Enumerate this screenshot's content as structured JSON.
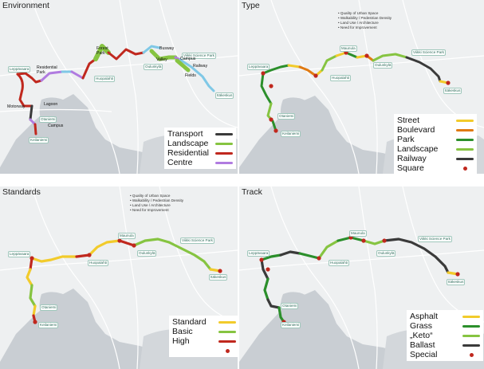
{
  "colors": {
    "red": "#c0281e",
    "yellow": "#f2cb2b",
    "orange": "#e07a12",
    "green": "#2b8f2b",
    "lightgreen": "#86c441",
    "purple": "#b07be0",
    "dark": "#3a3a3a",
    "lightblue": "#7fc8e6",
    "water": "#c9ced3",
    "road": "#ffffff"
  },
  "criteria": [
    "Quality of Urban Space",
    "Walkability / Pedestrian Density",
    "Land Use / Architecture",
    "Need for Improvement"
  ],
  "places": [
    "Leppävaara",
    "Huopalahti",
    "Oulunkylä",
    "Viikki Science Park",
    "Otaniemi",
    "Keilaniemi",
    "Itäkeskus",
    "Maunula"
  ],
  "panels": {
    "environment": {
      "title": "Environment",
      "legend": [
        {
          "label": "Transport",
          "color": "#3a3a3a"
        },
        {
          "label": "Landscape",
          "color": "#86c441"
        },
        {
          "label": "Residential",
          "color": "#c0281e"
        },
        {
          "label": "Centre",
          "color": "#b07be0"
        }
      ],
      "zones": [
        "Forest Park",
        "Busway",
        "Valley",
        "Campus",
        "Residential Park",
        "Railway",
        "Motorway",
        "Lagoon",
        "Campus",
        "Fields"
      ]
    },
    "type": {
      "title": "Type",
      "legend": [
        {
          "label": "Street",
          "color": "#f2cb2b",
          "kind": "line"
        },
        {
          "label": "Boulevard",
          "color": "#e07a12",
          "kind": "line"
        },
        {
          "label": "Park",
          "color": "#2b8f2b",
          "kind": "line"
        },
        {
          "label": "Landscape",
          "color": "#86c441",
          "kind": "line"
        },
        {
          "label": "Railway",
          "color": "#3a3a3a",
          "kind": "line"
        },
        {
          "label": "Square",
          "color": "#c0281e",
          "kind": "dot"
        }
      ]
    },
    "standards": {
      "title": "Standards",
      "legend": [
        {
          "label": "Standard",
          "color": "#f2cb2b",
          "kind": "line"
        },
        {
          "label": "Basic",
          "color": "#86c441",
          "kind": "line"
        },
        {
          "label": "High",
          "color": "#c0281e",
          "kind": "line"
        },
        {
          "label": "",
          "color": "#c0281e",
          "kind": "dot"
        }
      ]
    },
    "track": {
      "title": "Track",
      "legend": [
        {
          "label": "Asphalt",
          "color": "#f2cb2b",
          "kind": "line"
        },
        {
          "label": "Grass",
          "color": "#2b8f2b",
          "kind": "line"
        },
        {
          "label": "„Keto“",
          "color": "#86c441",
          "kind": "line"
        },
        {
          "label": "Ballast",
          "color": "#3a3a3a",
          "kind": "line"
        },
        {
          "label": "Special",
          "color": "#c0281e",
          "kind": "dot"
        }
      ]
    }
  }
}
